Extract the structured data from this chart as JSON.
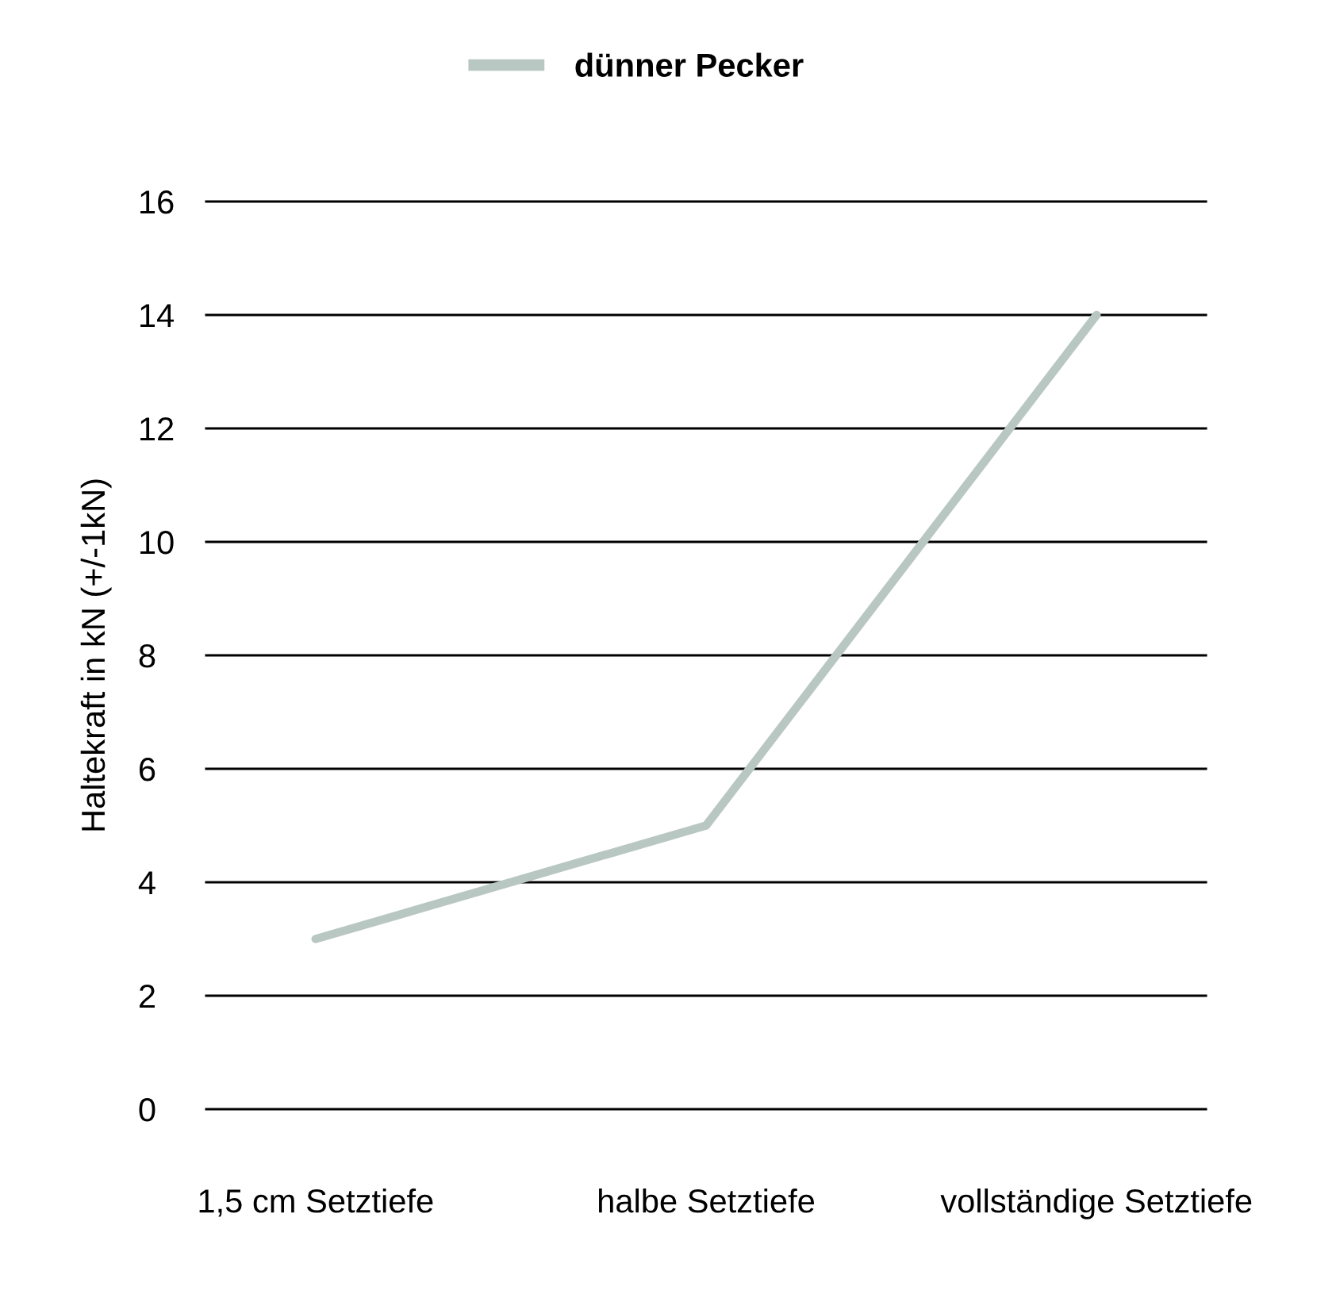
{
  "chart_data": {
    "type": "line",
    "categories": [
      "1,5 cm Setztiefe",
      "halbe Setztiefe",
      "vollständige Setztiefe"
    ],
    "series": [
      {
        "name": "dünner Pecker",
        "color": "#b9c7c2",
        "values": [
          3,
          5,
          14
        ]
      }
    ],
    "ylabel": "Haltekraft in kN (+/-1kN)",
    "ylim": [
      0,
      16
    ],
    "yticks": [
      0,
      2,
      4,
      6,
      8,
      10,
      12,
      14,
      16
    ],
    "grid": "y",
    "legend": "top",
    "line_style": "solid"
  }
}
